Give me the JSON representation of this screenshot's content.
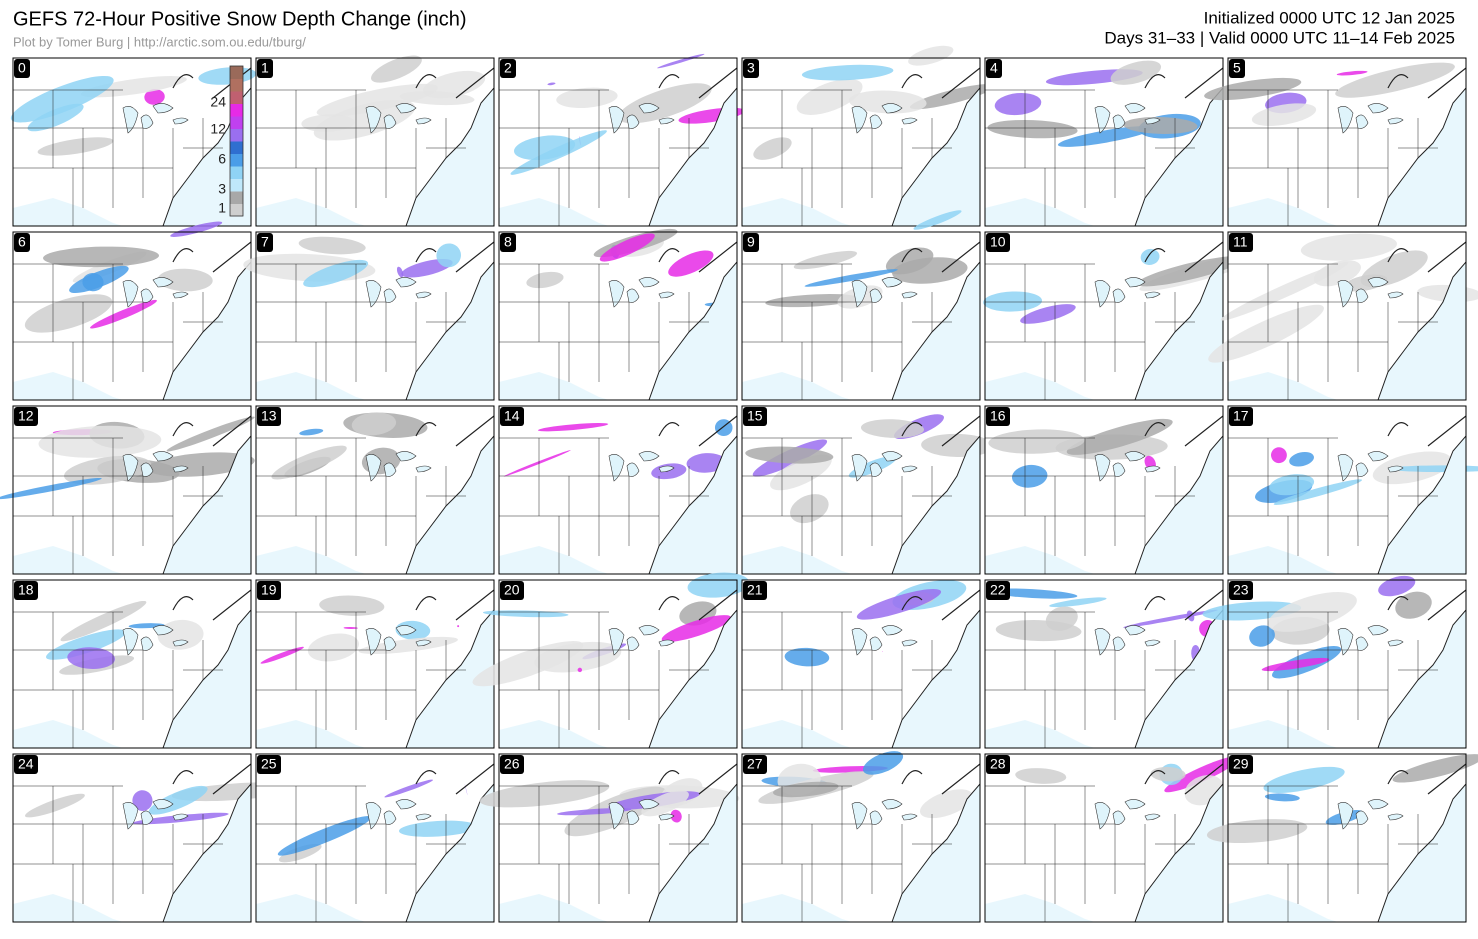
{
  "header": {
    "title": "GEFS 72-Hour Positive Snow Depth Change (inch)",
    "credit": "Plot by Tomer Burg | http://arctic.som.ou.edu/tburg/",
    "initialized": "Initialized 0000 UTC 12 Jan 2025",
    "valid": "Days 31–33 | Valid 0000 UTC 11–14 Feb 2025"
  },
  "colorbar": {
    "labels": [
      "24",
      "12",
      "6",
      "3",
      "1"
    ]
  },
  "panels": [
    {
      "label": "0"
    },
    {
      "label": "1"
    },
    {
      "label": "2"
    },
    {
      "label": "3"
    },
    {
      "label": "4"
    },
    {
      "label": "5"
    },
    {
      "label": "6"
    },
    {
      "label": "7"
    },
    {
      "label": "8"
    },
    {
      "label": "9"
    },
    {
      "label": "10"
    },
    {
      "label": "11"
    },
    {
      "label": "12"
    },
    {
      "label": "13"
    },
    {
      "label": "14"
    },
    {
      "label": "15"
    },
    {
      "label": "16"
    },
    {
      "label": "17"
    },
    {
      "label": "18"
    },
    {
      "label": "19"
    },
    {
      "label": "20"
    },
    {
      "label": "21"
    },
    {
      "label": "22"
    },
    {
      "label": "23"
    },
    {
      "label": "24"
    },
    {
      "label": "25"
    },
    {
      "label": "26"
    },
    {
      "label": "27"
    },
    {
      "label": "28"
    },
    {
      "label": "29"
    }
  ]
}
